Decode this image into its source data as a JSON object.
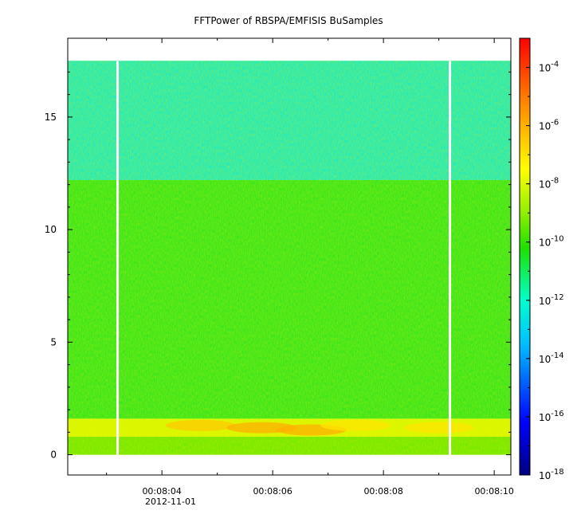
{
  "chart_data": {
    "type": "heatmap",
    "title": "FFTPower of RBSPA/EMFISIS  BuSamples",
    "xlabel": "",
    "ylabel": "",
    "x_range_seconds": [
      2.3,
      10.3
    ],
    "x_ticks": [
      {
        "t": 4,
        "label": "00:08:04"
      },
      {
        "t": 6,
        "label": "00:08:06"
      },
      {
        "t": 8,
        "label": "00:08:08"
      },
      {
        "t": 10,
        "label": "00:08:10"
      }
    ],
    "x_date_label": "2012-11-01",
    "ylim": [
      -0.9,
      18.5
    ],
    "y_ticks": [
      0,
      5,
      10,
      15
    ],
    "colorbar": {
      "scale": "log",
      "range_exponent": [
        -18,
        -3
      ],
      "ticks": [
        {
          "base": "10",
          "exp": "-4"
        },
        {
          "base": "10",
          "exp": "-6"
        },
        {
          "base": "10",
          "exp": "-8"
        },
        {
          "base": "10",
          "exp": "-10"
        },
        {
          "base": "10",
          "exp": "-12"
        },
        {
          "base": "10",
          "exp": "-14"
        },
        {
          "base": "10",
          "exp": "-16"
        },
        {
          "base": "10",
          "exp": "-18"
        }
      ]
    },
    "spectrum_bands": [
      {
        "y_range": [
          12.2,
          17.5
        ],
        "log_power": -12.5,
        "level": "spring-green"
      },
      {
        "y_range": [
          1.6,
          12.2
        ],
        "log_power": -10.5,
        "level": "green"
      },
      {
        "y_range": [
          0.8,
          1.6
        ],
        "log_power": -8,
        "level": "yellow-orange"
      },
      {
        "y_range": [
          0.0,
          0.8
        ],
        "log_power": -9.5,
        "level": "yellow-green"
      }
    ],
    "data_gaps_seconds": [
      3.2,
      9.2
    ],
    "enhancements": [
      {
        "t": 4.7,
        "y": 1.3,
        "log_power": -6.5
      },
      {
        "t": 5.8,
        "y": 1.2,
        "log_power": -6
      },
      {
        "t": 6.7,
        "y": 1.1,
        "log_power": -6
      },
      {
        "t": 7.5,
        "y": 1.3,
        "log_power": -7
      },
      {
        "t": 9.0,
        "y": 1.2,
        "log_power": -7
      }
    ]
  }
}
